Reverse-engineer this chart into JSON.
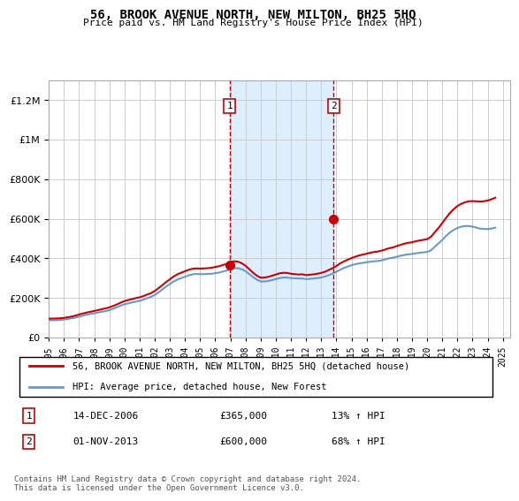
{
  "title": "56, BROOK AVENUE NORTH, NEW MILTON, BH25 5HQ",
  "subtitle": "Price paid vs. HM Land Registry's House Price Index (HPI)",
  "ylabel_values": [
    "£0",
    "£200K",
    "£400K",
    "£600K",
    "£800K",
    "£1M",
    "£1.2M"
  ],
  "ylim": [
    0,
    1300000
  ],
  "yticks": [
    0,
    200000,
    400000,
    600000,
    800000,
    1000000,
    1200000
  ],
  "x_start_year": 1995,
  "x_end_year": 2025,
  "sale1_date": 2006.95,
  "sale1_price": 365000,
  "sale1_label": "1",
  "sale1_text": "14-DEC-2006",
  "sale1_price_text": "£365,000",
  "sale1_hpi_text": "13% ↑ HPI",
  "sale2_date": 2013.83,
  "sale2_price": 600000,
  "sale2_label": "2",
  "sale2_text": "01-NOV-2013",
  "sale2_price_text": "£600,000",
  "sale2_hpi_text": "68% ↑ HPI",
  "red_line_color": "#cc0000",
  "blue_line_color": "#6699cc",
  "shade_color": "#ddeeff",
  "marker_color": "#cc0000",
  "grid_color": "#cccccc",
  "background_color": "#ffffff",
  "legend_label1": "56, BROOK AVENUE NORTH, NEW MILTON, BH25 5HQ (detached house)",
  "legend_label2": "HPI: Average price, detached house, New Forest",
  "footer": "Contains HM Land Registry data © Crown copyright and database right 2024.\nThis data is licensed under the Open Government Licence v3.0.",
  "hpi_years": [
    1995.0,
    1995.25,
    1995.5,
    1995.75,
    1996.0,
    1996.25,
    1996.5,
    1996.75,
    1997.0,
    1997.25,
    1997.5,
    1997.75,
    1998.0,
    1998.25,
    1998.5,
    1998.75,
    1999.0,
    1999.25,
    1999.5,
    1999.75,
    2000.0,
    2000.25,
    2000.5,
    2000.75,
    2001.0,
    2001.25,
    2001.5,
    2001.75,
    2002.0,
    2002.25,
    2002.5,
    2002.75,
    2003.0,
    2003.25,
    2003.5,
    2003.75,
    2004.0,
    2004.25,
    2004.5,
    2004.75,
    2005.0,
    2005.25,
    2005.5,
    2005.75,
    2006.0,
    2006.25,
    2006.5,
    2006.75,
    2007.0,
    2007.25,
    2007.5,
    2007.75,
    2008.0,
    2008.25,
    2008.5,
    2008.75,
    2009.0,
    2009.25,
    2009.5,
    2009.75,
    2010.0,
    2010.25,
    2010.5,
    2010.75,
    2011.0,
    2011.25,
    2011.5,
    2011.75,
    2012.0,
    2012.25,
    2012.5,
    2012.75,
    2013.0,
    2013.25,
    2013.5,
    2013.75,
    2014.0,
    2014.25,
    2014.5,
    2014.75,
    2015.0,
    2015.25,
    2015.5,
    2015.75,
    2016.0,
    2016.25,
    2016.5,
    2016.75,
    2017.0,
    2017.25,
    2017.5,
    2017.75,
    2018.0,
    2018.25,
    2018.5,
    2018.75,
    2019.0,
    2019.25,
    2019.5,
    2019.75,
    2020.0,
    2020.25,
    2020.5,
    2020.75,
    2021.0,
    2021.25,
    2021.5,
    2021.75,
    2022.0,
    2022.25,
    2022.5,
    2022.75,
    2023.0,
    2023.25,
    2023.5,
    2023.75,
    2024.0,
    2024.25,
    2024.5
  ],
  "hpi_values": [
    88000,
    87000,
    87500,
    88000,
    91000,
    93000,
    97000,
    100000,
    105000,
    110000,
    115000,
    119000,
    122000,
    126000,
    130000,
    133000,
    138000,
    145000,
    153000,
    161000,
    168000,
    172000,
    177000,
    181000,
    185000,
    191000,
    198000,
    205000,
    215000,
    228000,
    242000,
    257000,
    270000,
    283000,
    293000,
    300000,
    307000,
    314000,
    319000,
    321000,
    320000,
    320000,
    321000,
    322000,
    325000,
    328000,
    333000,
    338000,
    345000,
    350000,
    350000,
    345000,
    335000,
    320000,
    305000,
    292000,
    283000,
    283000,
    285000,
    290000,
    295000,
    300000,
    303000,
    303000,
    300000,
    299000,
    298000,
    298000,
    295000,
    296000,
    298000,
    300000,
    303000,
    308000,
    315000,
    322000,
    332000,
    342000,
    351000,
    358000,
    365000,
    370000,
    374000,
    377000,
    380000,
    383000,
    385000,
    386000,
    390000,
    395000,
    400000,
    403000,
    408000,
    413000,
    417000,
    420000,
    422000,
    425000,
    428000,
    430000,
    432000,
    440000,
    458000,
    475000,
    493000,
    513000,
    530000,
    543000,
    553000,
    560000,
    563000,
    563000,
    560000,
    555000,
    550000,
    548000,
    548000,
    550000,
    555000
  ],
  "red_years": [
    1995.0,
    1995.25,
    1995.5,
    1995.75,
    1996.0,
    1996.25,
    1996.5,
    1996.75,
    1997.0,
    1997.25,
    1997.5,
    1997.75,
    1998.0,
    1998.25,
    1998.5,
    1998.75,
    1999.0,
    1999.25,
    1999.5,
    1999.75,
    2000.0,
    2000.25,
    2000.5,
    2000.75,
    2001.0,
    2001.25,
    2001.5,
    2001.75,
    2002.0,
    2002.25,
    2002.5,
    2002.75,
    2003.0,
    2003.25,
    2003.5,
    2003.75,
    2004.0,
    2004.25,
    2004.5,
    2004.75,
    2005.0,
    2005.25,
    2005.5,
    2005.75,
    2006.0,
    2006.25,
    2006.5,
    2006.75,
    2007.0,
    2007.25,
    2007.5,
    2007.75,
    2008.0,
    2008.25,
    2008.5,
    2008.75,
    2009.0,
    2009.25,
    2009.5,
    2009.75,
    2010.0,
    2010.25,
    2010.5,
    2010.75,
    2011.0,
    2011.25,
    2011.5,
    2011.75,
    2012.0,
    2012.25,
    2012.5,
    2012.75,
    2013.0,
    2013.25,
    2013.5,
    2013.75,
    2014.0,
    2014.25,
    2014.5,
    2014.75,
    2015.0,
    2015.25,
    2015.5,
    2015.75,
    2016.0,
    2016.25,
    2016.5,
    2016.75,
    2017.0,
    2017.25,
    2017.5,
    2017.75,
    2018.0,
    2018.25,
    2018.5,
    2018.75,
    2019.0,
    2019.25,
    2019.5,
    2019.75,
    2020.0,
    2020.25,
    2020.5,
    2020.75,
    2021.0,
    2021.25,
    2021.5,
    2021.75,
    2022.0,
    2022.25,
    2022.5,
    2022.75,
    2023.0,
    2023.25,
    2023.5,
    2023.75,
    2024.0,
    2024.25,
    2024.5
  ],
  "red_values": [
    95000,
    95500,
    96000,
    97000,
    99000,
    102000,
    106000,
    110000,
    116000,
    121000,
    126000,
    130000,
    134000,
    138000,
    143000,
    147000,
    152000,
    159000,
    167000,
    176000,
    184000,
    189000,
    194000,
    199000,
    203000,
    209000,
    217000,
    224000,
    235000,
    249000,
    264000,
    280000,
    294000,
    308000,
    319000,
    327000,
    335000,
    342000,
    347000,
    349000,
    348000,
    349000,
    350000,
    352000,
    356000,
    360000,
    366000,
    372000,
    380000,
    385000,
    383000,
    375000,
    362000,
    345000,
    327000,
    312000,
    302000,
    303000,
    306000,
    312000,
    318000,
    324000,
    327000,
    326000,
    322000,
    320000,
    318000,
    319000,
    315000,
    317000,
    319000,
    322000,
    326000,
    332000,
    341000,
    350000,
    361000,
    374000,
    384000,
    393000,
    401000,
    408000,
    414000,
    419000,
    423000,
    428000,
    432000,
    434000,
    439000,
    445000,
    451000,
    455000,
    462000,
    468000,
    474000,
    478000,
    481000,
    486000,
    490000,
    493000,
    497000,
    508000,
    531000,
    553000,
    578000,
    604000,
    628000,
    648000,
    664000,
    675000,
    683000,
    688000,
    689000,
    688000,
    687000,
    688000,
    692000,
    698000,
    706000
  ],
  "hatch_region": [
    2006.95,
    2013.83
  ]
}
